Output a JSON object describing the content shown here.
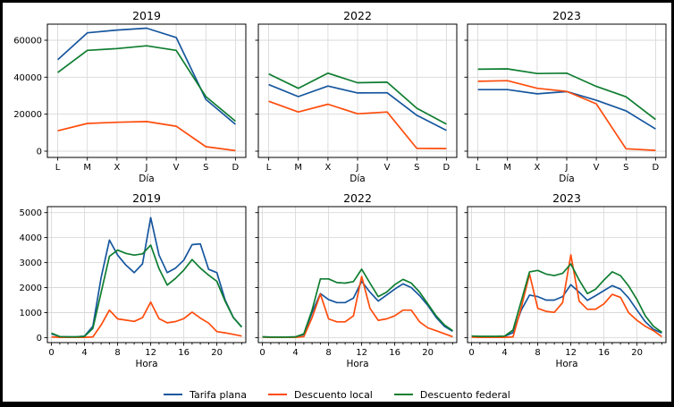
{
  "figure": {
    "background": "#ffffff",
    "frame_color": "#000000",
    "grid_color": "#d9d9d9"
  },
  "legend": {
    "items": [
      {
        "label": "Tarifa plana",
        "color": "#16569e"
      },
      {
        "label": "Descuento local",
        "color": "#ff4c0c"
      },
      {
        "label": "Descuento federal",
        "color": "#0e7d30"
      }
    ]
  },
  "chart_data": [
    {
      "type": "line",
      "title": "2019",
      "xlabel": "Día",
      "ylabel": "",
      "categories": [
        "L",
        "M",
        "X",
        "J",
        "V",
        "S",
        "D"
      ],
      "xlim": [
        -0.35,
        6.35
      ],
      "ylim": [
        -3400,
        68700
      ],
      "yticks": [
        0,
        20000,
        40000,
        60000
      ],
      "ytick_labels": [
        "0",
        "20000",
        "40000",
        "60000"
      ],
      "show_ytick_labels": true,
      "grid": true,
      "series": [
        {
          "name": "Tarifa plana",
          "color": "#16569e",
          "values": [
            49500,
            64000,
            65500,
            66500,
            61500,
            28000,
            14500
          ]
        },
        {
          "name": "Descuento local",
          "color": "#ff4c0c",
          "values": [
            11000,
            15000,
            15600,
            16000,
            13500,
            2400,
            300
          ]
        },
        {
          "name": "Descuento federal",
          "color": "#0e7d30",
          "values": [
            42500,
            54500,
            55500,
            57000,
            54500,
            29500,
            16200
          ]
        }
      ]
    },
    {
      "type": "line",
      "title": "2022",
      "xlabel": "Día",
      "ylabel": "",
      "categories": [
        "L",
        "M",
        "X",
        "J",
        "V",
        "S",
        "D"
      ],
      "xlim": [
        -0.35,
        6.35
      ],
      "ylim": [
        -3400,
        68700
      ],
      "yticks": [
        0,
        20000,
        40000,
        60000
      ],
      "ytick_labels": [
        "0",
        "20000",
        "40000",
        "60000"
      ],
      "show_ytick_labels": false,
      "grid": true,
      "series": [
        {
          "name": "Tarifa plana",
          "color": "#16569e",
          "values": [
            36000,
            29500,
            35200,
            31500,
            31600,
            19400,
            11200
          ]
        },
        {
          "name": "Descuento local",
          "color": "#ff4c0c",
          "values": [
            27000,
            21200,
            25400,
            20200,
            21200,
            1500,
            1400
          ]
        },
        {
          "name": "Descuento federal",
          "color": "#0e7d30",
          "values": [
            41800,
            34000,
            42200,
            37000,
            37300,
            23200,
            14600
          ]
        }
      ]
    },
    {
      "type": "line",
      "title": "2023",
      "xlabel": "Día",
      "ylabel": "",
      "categories": [
        "L",
        "M",
        "X",
        "J",
        "V",
        "S",
        "D"
      ],
      "xlim": [
        -0.35,
        6.35
      ],
      "ylim": [
        -3400,
        68700
      ],
      "yticks": [
        0,
        20000,
        40000,
        60000
      ],
      "ytick_labels": [
        "0",
        "20000",
        "40000",
        "60000"
      ],
      "show_ytick_labels": false,
      "grid": true,
      "series": [
        {
          "name": "Tarifa plana",
          "color": "#16569e",
          "values": [
            33300,
            33300,
            31000,
            32200,
            27500,
            21800,
            12000
          ]
        },
        {
          "name": "Descuento local",
          "color": "#ff4c0c",
          "values": [
            37800,
            38100,
            34000,
            32300,
            25600,
            1300,
            400
          ]
        },
        {
          "name": "Descuento federal",
          "color": "#0e7d30",
          "values": [
            44300,
            44500,
            42000,
            42200,
            35000,
            29400,
            17100
          ]
        }
      ]
    },
    {
      "type": "line",
      "title": "2019",
      "xlabel": "Hora",
      "ylabel": "",
      "x": [
        0,
        1,
        2,
        3,
        4,
        5,
        6,
        7,
        8,
        9,
        10,
        11,
        12,
        13,
        14,
        15,
        16,
        17,
        18,
        19,
        20,
        21,
        22,
        23
      ],
      "xticks": [
        0,
        4,
        8,
        12,
        16,
        20
      ],
      "minor_xticks": true,
      "xlim": [
        -0.5,
        23.5
      ],
      "ylim": [
        -200,
        5240
      ],
      "yticks": [
        0,
        1000,
        2000,
        3000,
        4000,
        5000
      ],
      "ytick_labels": [
        "0",
        "1000",
        "2000",
        "3000",
        "4000",
        "5000"
      ],
      "show_ytick_labels": true,
      "grid": true,
      "series": [
        {
          "name": "Tarifa plana",
          "color": "#16569e",
          "values": [
            150,
            40,
            30,
            30,
            60,
            450,
            2400,
            3900,
            3300,
            2900,
            2600,
            2950,
            4800,
            3300,
            2600,
            2780,
            3100,
            3720,
            3750,
            2730,
            2600,
            1500,
            800,
            430
          ]
        },
        {
          "name": "Descuento local",
          "color": "#ff4c0c",
          "values": [
            30,
            10,
            10,
            10,
            10,
            30,
            500,
            1100,
            750,
            700,
            650,
            800,
            1420,
            760,
            590,
            640,
            760,
            1020,
            780,
            580,
            240,
            190,
            130,
            60
          ]
        },
        {
          "name": "Descuento federal",
          "color": "#0e7d30",
          "values": [
            180,
            40,
            30,
            30,
            50,
            370,
            1800,
            3250,
            3500,
            3370,
            3300,
            3350,
            3700,
            2760,
            2100,
            2370,
            2700,
            3120,
            2780,
            2500,
            2250,
            1450,
            800,
            420
          ]
        }
      ]
    },
    {
      "type": "line",
      "title": "2022",
      "xlabel": "Hora",
      "ylabel": "",
      "x": [
        0,
        1,
        2,
        3,
        4,
        5,
        6,
        7,
        8,
        9,
        10,
        11,
        12,
        13,
        14,
        15,
        16,
        17,
        18,
        19,
        20,
        21,
        22,
        23
      ],
      "xticks": [
        0,
        4,
        8,
        12,
        16,
        20
      ],
      "minor_xticks": true,
      "xlim": [
        -0.5,
        23.5
      ],
      "ylim": [
        -200,
        5240
      ],
      "yticks": [
        0,
        1000,
        2000,
        3000,
        4000,
        5000
      ],
      "ytick_labels": [
        "0",
        "1000",
        "2000",
        "3000",
        "4000",
        "5000"
      ],
      "show_ytick_labels": false,
      "grid": true,
      "series": [
        {
          "name": "Tarifa plana",
          "color": "#16569e",
          "values": [
            30,
            20,
            20,
            20,
            30,
            120,
            1000,
            1760,
            1520,
            1400,
            1400,
            1580,
            2250,
            1820,
            1460,
            1700,
            1940,
            2150,
            2000,
            1680,
            1290,
            810,
            450,
            250
          ]
        },
        {
          "name": "Descuento local",
          "color": "#ff4c0c",
          "values": [
            20,
            10,
            10,
            10,
            10,
            40,
            800,
            1740,
            750,
            630,
            630,
            870,
            2450,
            1170,
            690,
            750,
            870,
            1100,
            1100,
            630,
            390,
            275,
            155,
            35
          ]
        },
        {
          "name": "Descuento federal",
          "color": "#0e7d30",
          "values": [
            30,
            20,
            20,
            20,
            30,
            150,
            1100,
            2350,
            2350,
            2200,
            2180,
            2240,
            2740,
            2180,
            1640,
            1820,
            2120,
            2330,
            2180,
            1820,
            1350,
            870,
            510,
            275
          ]
        }
      ]
    },
    {
      "type": "line",
      "title": "2023",
      "xlabel": "Hora",
      "ylabel": "",
      "x": [
        0,
        1,
        2,
        3,
        4,
        5,
        6,
        7,
        8,
        9,
        10,
        11,
        12,
        13,
        14,
        15,
        16,
        17,
        18,
        19,
        20,
        21,
        22,
        23
      ],
      "xticks": [
        0,
        4,
        8,
        12,
        16,
        20
      ],
      "minor_xticks": true,
      "xlim": [
        -0.5,
        23.5
      ],
      "ylim": [
        -200,
        5240
      ],
      "yticks": [
        0,
        1000,
        2000,
        3000,
        4000,
        5000
      ],
      "ytick_labels": [
        "0",
        "1000",
        "2000",
        "3000",
        "4000",
        "5000"
      ],
      "show_ytick_labels": false,
      "grid": true,
      "series": [
        {
          "name": "Tarifa plana",
          "color": "#16569e",
          "values": [
            60,
            40,
            40,
            40,
            50,
            200,
            1100,
            1700,
            1640,
            1500,
            1500,
            1640,
            2120,
            1820,
            1490,
            1680,
            1880,
            2080,
            1940,
            1580,
            1100,
            630,
            330,
            180
          ]
        },
        {
          "name": "Descuento local",
          "color": "#ff4c0c",
          "values": [
            20,
            10,
            10,
            10,
            10,
            30,
            1200,
            2540,
            1170,
            1050,
            1010,
            1400,
            3310,
            1460,
            1130,
            1140,
            1350,
            1730,
            1610,
            990,
            690,
            450,
            275,
            35
          ]
        },
        {
          "name": "Descuento federal",
          "color": "#0e7d30",
          "values": [
            60,
            50,
            50,
            50,
            60,
            300,
            1460,
            2630,
            2690,
            2540,
            2480,
            2570,
            2950,
            2300,
            1760,
            1940,
            2300,
            2630,
            2480,
            2060,
            1520,
            870,
            450,
            215
          ]
        }
      ]
    }
  ]
}
